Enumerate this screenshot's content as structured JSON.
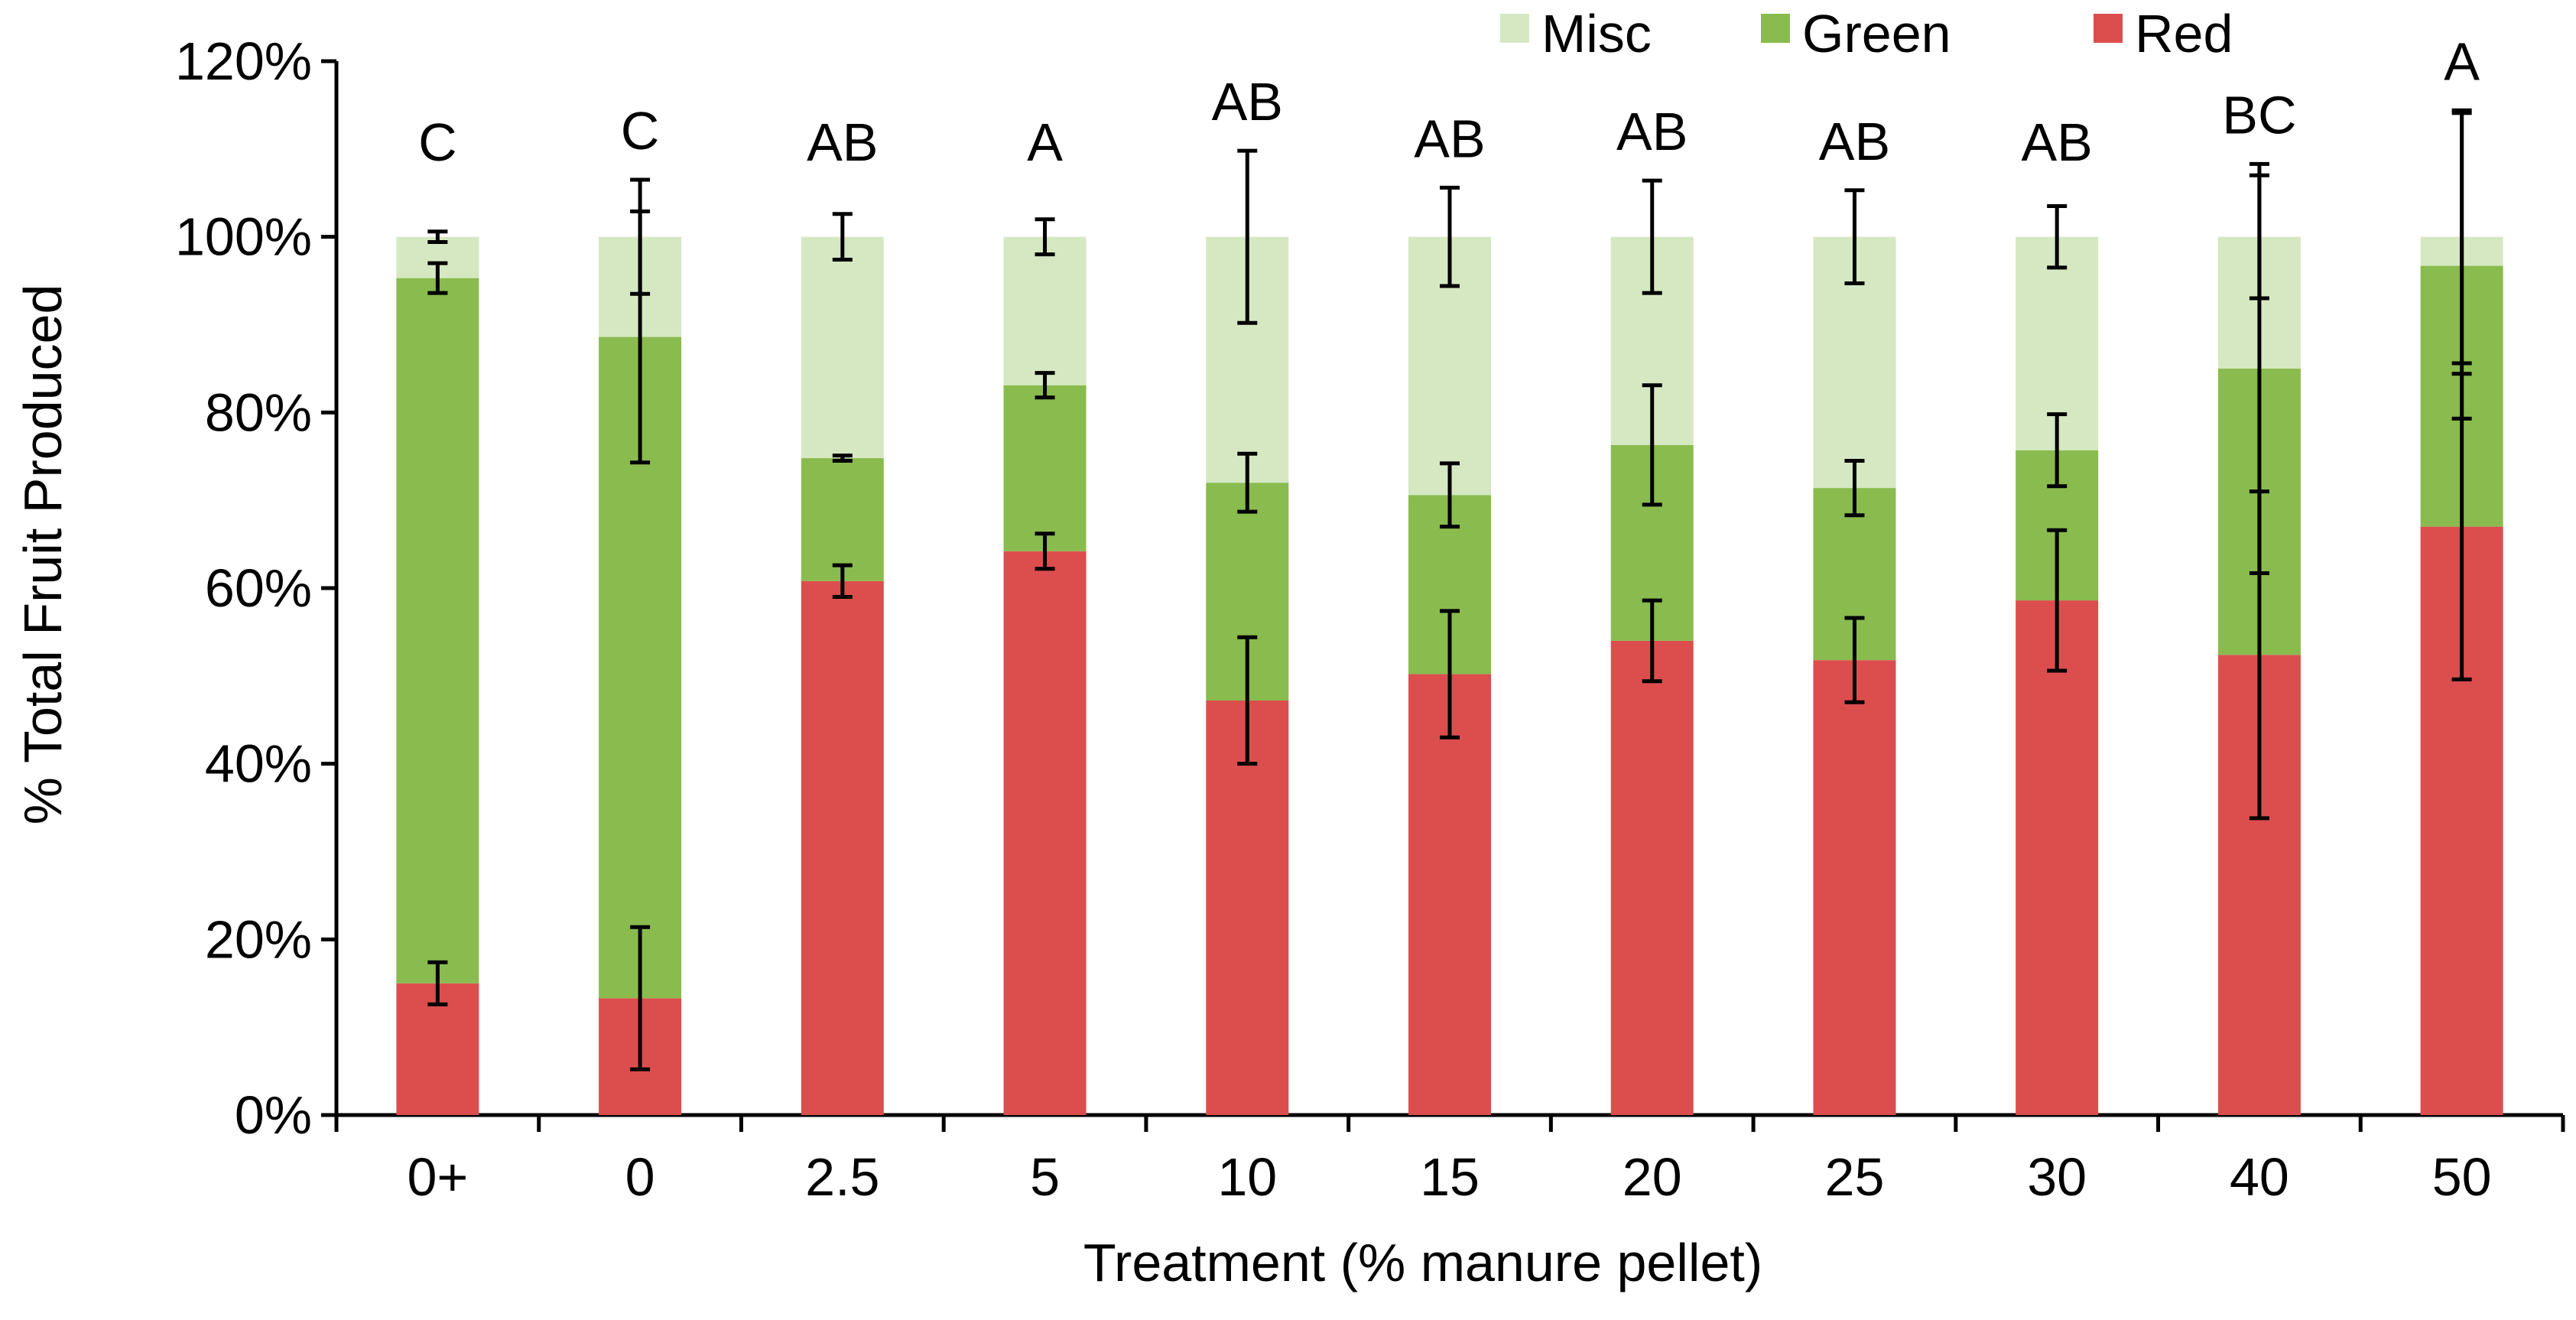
{
  "chart_data": {
    "type": "bar",
    "stacked": true,
    "title": "",
    "xlabel": "Treatment (% manure pellet)",
    "ylabel": "% Total Fruit Produced",
    "ylim": [
      0,
      120
    ],
    "yticks": [
      0,
      20,
      40,
      60,
      80,
      100,
      120
    ],
    "ytick_labels": [
      "0%",
      "20%",
      "40%",
      "60%",
      "80%",
      "100%",
      "120%"
    ],
    "categories": [
      "0+",
      "0",
      "2.5",
      "5",
      "10",
      "15",
      "20",
      "25",
      "30",
      "40",
      "50"
    ],
    "letters": [
      "C",
      "C",
      "AB",
      "A",
      "AB",
      "AB",
      "AB",
      "AB",
      "AB",
      "BC",
      "A"
    ],
    "legend_position": "top-right",
    "series": [
      {
        "name": "Red",
        "color": "#DC4E4E",
        "values": [
          15,
          13.3,
          60.8,
          64.2,
          47.2,
          50.2,
          54,
          51.8,
          58.6,
          52.4,
          67
        ],
        "errors": [
          2.4,
          8.1,
          1.8,
          2.0,
          7.2,
          7.2,
          4.6,
          4.8,
          8.0,
          18.6,
          17.4
        ]
      },
      {
        "name": "Green",
        "color": "#8ABB4E",
        "values": [
          80.3,
          75.3,
          14.0,
          18.9,
          24.8,
          20.4,
          22.3,
          19.6,
          17.1,
          32.6,
          29.7
        ],
        "errors": [
          1.7,
          14.3,
          0.3,
          1.4,
          3.3,
          3.6,
          6.8,
          3.1,
          4.1,
          23.3,
          17.4
        ]
      },
      {
        "name": "Misc",
        "color": "#D5E8C2",
        "values": [
          4.7,
          11.4,
          25.2,
          16.9,
          28.0,
          29.4,
          23.7,
          28.6,
          24.3,
          15.0,
          3.3
        ],
        "errors": [
          0.6,
          6.5,
          2.6,
          2.0,
          9.8,
          5.6,
          6.4,
          5.3,
          3.5,
          7.0,
          14.4
        ]
      }
    ]
  }
}
